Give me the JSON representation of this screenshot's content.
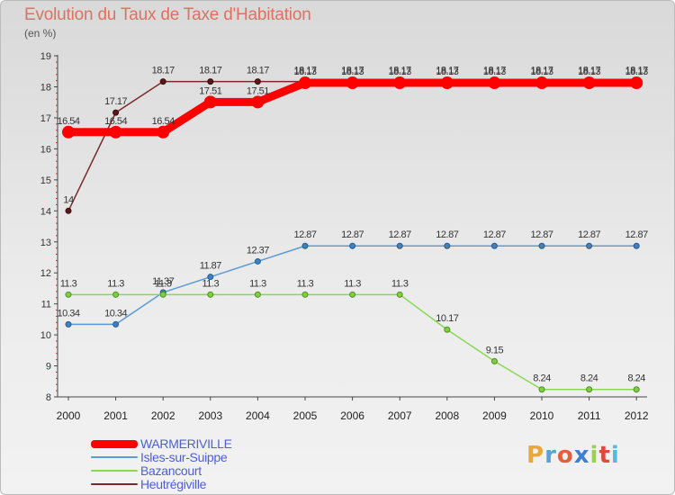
{
  "chart_data": {
    "type": "line",
    "title": "Evolution du Taux de Taxe d'Habitation",
    "subtitle": "(en %)",
    "x": [
      "2000",
      "2001",
      "2002",
      "2003",
      "2004",
      "2005",
      "2006",
      "2007",
      "2008",
      "2009",
      "2010",
      "2011",
      "2012"
    ],
    "ylim": [
      8,
      19
    ],
    "yticks": [
      8,
      9,
      10,
      11,
      12,
      13,
      14,
      15,
      16,
      17,
      18,
      19
    ],
    "grid": false,
    "legend_position": "bottom-left",
    "series": [
      {
        "name": "Heutrégiville",
        "color": "#7a2b2b",
        "values": [
          14,
          17.17,
          18.17,
          18.17,
          18.17,
          18.17,
          18.17,
          18.17,
          18.17,
          18.17,
          18.17,
          18.17,
          18.17
        ],
        "labels": [
          "14",
          "17.17",
          "18.17",
          "18.17",
          "18.17",
          "18.17",
          "18.17",
          "18.17",
          "18.17",
          "18.17",
          "18.17",
          "18.17",
          "18.17"
        ]
      },
      {
        "name": "WARMERIVILLE",
        "color": "#ff0000",
        "values": [
          16.54,
          16.54,
          16.54,
          17.51,
          17.51,
          18.13,
          18.13,
          18.13,
          18.13,
          18.13,
          18.13,
          18.13,
          18.13
        ],
        "labels": [
          "16.54",
          "16.54",
          "16.54",
          "17.51",
          "17.51",
          "18.13",
          "18.13",
          "18.13",
          "18.13",
          "18.13",
          "18.13",
          "18.13",
          "18.13"
        ]
      },
      {
        "name": "Isles-sur-Suippe",
        "color": "#5b9bd5",
        "values": [
          10.34,
          10.34,
          11.37,
          11.87,
          12.37,
          12.87,
          12.87,
          12.87,
          12.87,
          12.87,
          12.87,
          12.87,
          12.87
        ],
        "labels": [
          "10.34",
          "10.34",
          "11.37",
          "11.87",
          "12.37",
          "12.87",
          "12.87",
          "12.87",
          "12.87",
          "12.87",
          "12.87",
          "12.87",
          "12.87"
        ]
      },
      {
        "name": "Bazancourt",
        "color": "#88d855",
        "values": [
          11.3,
          11.3,
          11.3,
          11.3,
          11.3,
          11.3,
          11.3,
          11.3,
          10.17,
          9.15,
          8.24,
          8.24,
          8.24
        ],
        "labels": [
          "11.3",
          "11.3",
          "11.3",
          "11.3",
          "11.3",
          "11.3",
          "11.3",
          "11.3",
          "10.17",
          "9.15",
          "8.24",
          "8.24",
          "8.24"
        ]
      }
    ]
  },
  "legend": [
    {
      "name": "WARMERIVILLE",
      "color": "#ff0000"
    },
    {
      "name": "Isles-sur-Suippe",
      "color": "#5b9bd5"
    },
    {
      "name": "Bazancourt",
      "color": "#88d855"
    },
    {
      "name": "Heutrégiville",
      "color": "#7a2b2b"
    }
  ],
  "logo": {
    "text": "Proxiti",
    "colors": [
      "#e8a83a",
      "#5aa0d8",
      "#e06040",
      "#3f7fd0",
      "#9bd050",
      "#e04a3a",
      "#58b8e0"
    ]
  }
}
